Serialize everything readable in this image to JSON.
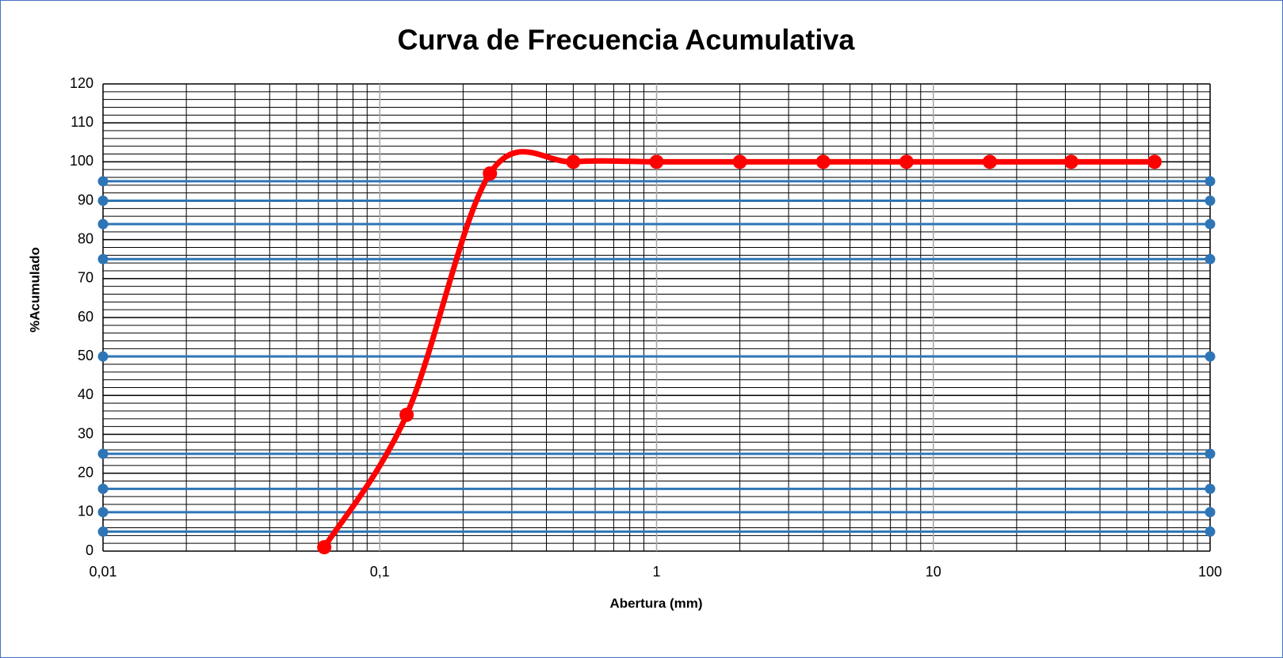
{
  "chart_data": {
    "type": "line",
    "title": "Curva de Frecuencia Acumulativa",
    "x_label": "Abertura (mm)",
    "y_label": "%Acumulado",
    "xscale": "log",
    "xlim": [
      0.01,
      100
    ],
    "xticks": [
      {
        "value": 0.01,
        "label": "0,01"
      },
      {
        "value": 0.1,
        "label": "0,1"
      },
      1,
      10,
      100
    ],
    "ylim": [
      0,
      120
    ],
    "yticks": [
      0,
      10,
      20,
      30,
      40,
      50,
      60,
      70,
      80,
      90,
      100,
      110,
      120
    ],
    "grid": true,
    "y_minor_step": 2,
    "series": [
      {
        "color": "#ff0000",
        "smooth": true,
        "x": [
          0.063,
          0.125,
          0.25,
          0.5,
          1,
          2,
          4,
          8,
          16,
          31.5,
          63
        ],
        "values": [
          1,
          35,
          97,
          100,
          100,
          100,
          100,
          100,
          100,
          100,
          100
        ]
      },
      {
        "color": "#2e75b6",
        "x": [
          0.01,
          100
        ],
        "values": [
          5,
          5
        ]
      },
      {
        "color": "#2e75b6",
        "x": [
          0.01,
          100
        ],
        "values": [
          10,
          10
        ]
      },
      {
        "color": "#2e75b6",
        "x": [
          0.01,
          100
        ],
        "values": [
          16,
          16
        ]
      },
      {
        "color": "#2e75b6",
        "x": [
          0.01,
          100
        ],
        "values": [
          25,
          25
        ]
      },
      {
        "color": "#2e75b6",
        "x": [
          0.01,
          100
        ],
        "values": [
          50,
          50
        ]
      },
      {
        "color": "#2e75b6",
        "x": [
          0.01,
          100
        ],
        "values": [
          75,
          75
        ]
      },
      {
        "color": "#2e75b6",
        "x": [
          0.01,
          100
        ],
        "values": [
          84,
          84
        ]
      },
      {
        "color": "#2e75b6",
        "x": [
          0.01,
          100
        ],
        "values": [
          90,
          90
        ]
      },
      {
        "color": "#2e75b6",
        "x": [
          0.01,
          100
        ],
        "values": [
          95,
          95
        ]
      }
    ]
  }
}
